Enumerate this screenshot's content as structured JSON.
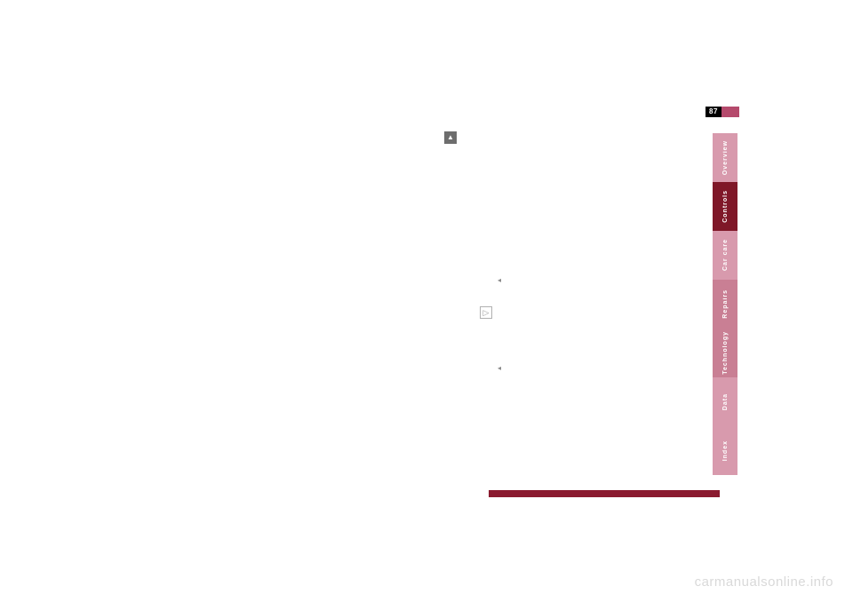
{
  "page_number": "87",
  "tabs": [
    {
      "label": "Overview",
      "bg": "#d89aad",
      "height": 55
    },
    {
      "label": "Controls",
      "bg": "#7f1728",
      "height": 55
    },
    {
      "label": "Car care",
      "bg": "#d89aad",
      "height": 55
    },
    {
      "label": "Repairs",
      "bg": "#c97f94",
      "height": 55
    },
    {
      "label": "Technology",
      "bg": "#c97f94",
      "height": 55
    },
    {
      "label": "Data",
      "bg": "#d89aad",
      "height": 55
    },
    {
      "label": "Index",
      "bg": "#d89aad",
      "height": 55
    }
  ],
  "watermark": "carmanualsonline.info",
  "colors": {
    "page_bg": "#ffffff",
    "pagenum_bg": "#000000",
    "pagenum_fg": "#ffffff",
    "pagenum_bar": "#b54a6c",
    "footer_bar": "#8a1a2f",
    "tab_text": "#ffffff",
    "watermark": "#d9d9d9"
  }
}
